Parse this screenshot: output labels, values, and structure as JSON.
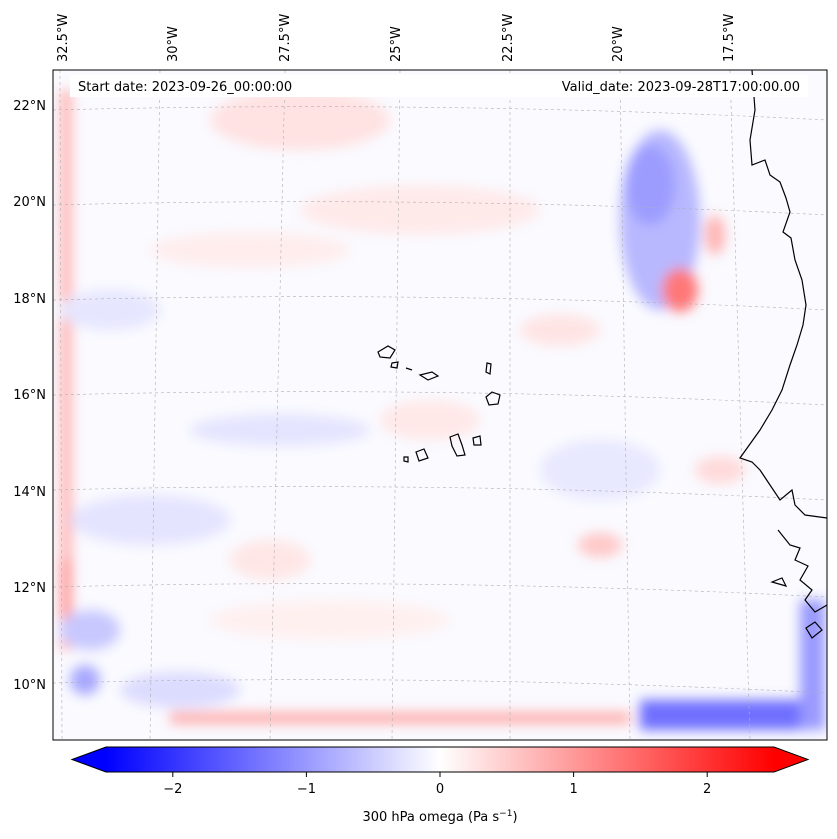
{
  "header": {
    "start_label": "Start date: 2023-09-26_00:00:00",
    "valid_label": "Valid_date: 2023-09-28T17:00:00.00"
  },
  "longitude_labels": [
    "32.5°W",
    "30°W",
    "27.5°W",
    "25°W",
    "22.5°W",
    "20°W",
    "17.5°W"
  ],
  "latitude_labels": [
    "22°N",
    "20°N",
    "18°N",
    "16°N",
    "14°N",
    "12°N",
    "10°N"
  ],
  "colorbar": {
    "ticks": [
      "−2",
      "−1",
      "0",
      "1",
      "2"
    ],
    "tick_values": [
      -2,
      -1,
      0,
      1,
      2
    ],
    "range": [
      -2.5,
      2.5
    ],
    "label_prefix": "300 hPa omega (Pa s",
    "label_exp": "−1",
    "label_suffix": ")",
    "colormap": "bwr",
    "low_color": "#0000ff",
    "mid_color": "#ffffff",
    "high_color": "#ff0000",
    "extend": "both"
  },
  "map": {
    "field": "300 hPa omega",
    "coastline_color": "#000000",
    "gridline_color": "#b0b0b0"
  }
}
